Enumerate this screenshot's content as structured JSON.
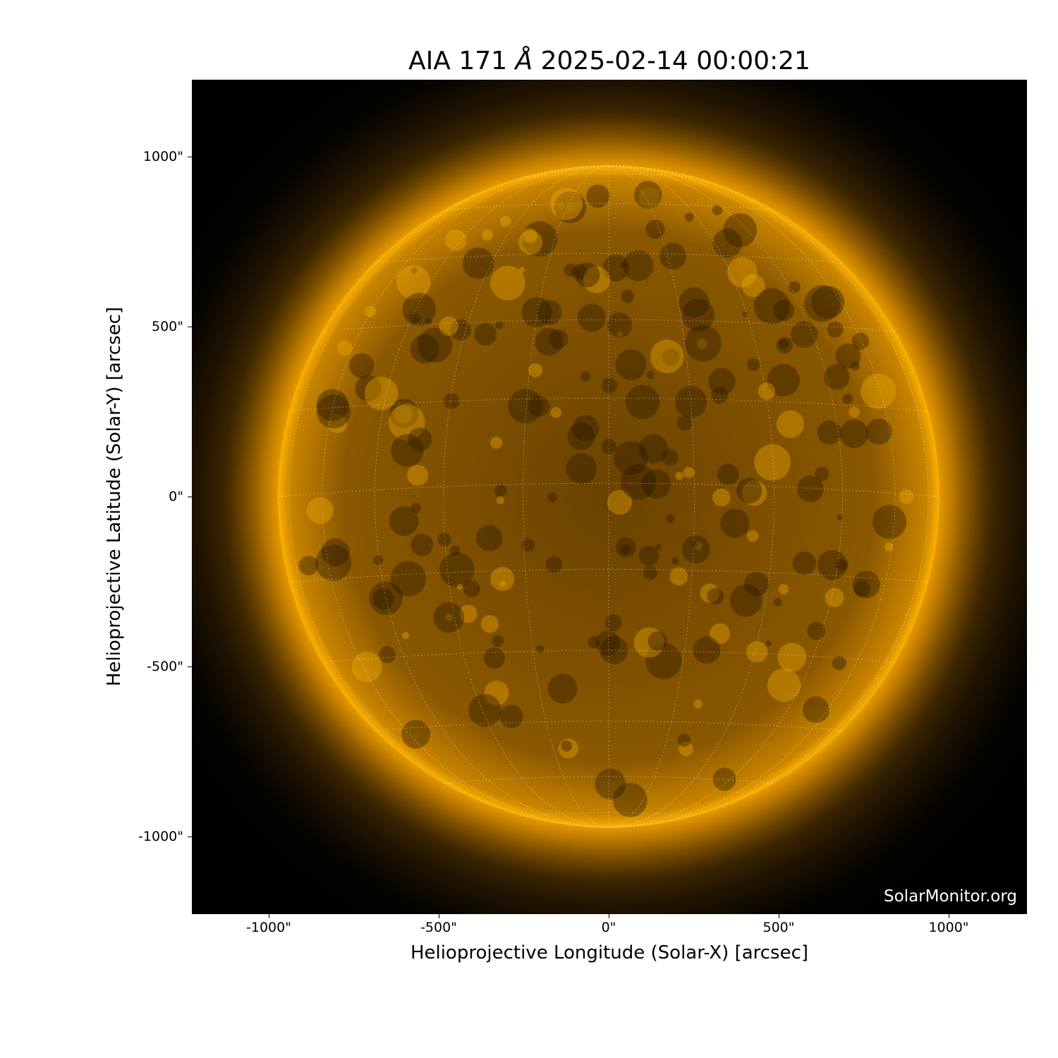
{
  "title": {
    "instrument": "AIA 171",
    "unit": "Å",
    "datetime": "2025-02-14 00:00:21"
  },
  "xaxis": {
    "label": "Helioprojective Longitude (Solar-X) [arcsec]",
    "ticks": [
      "-1000\"",
      "-500\"",
      "0\"",
      "500\"",
      "1000\""
    ],
    "tick_values": [
      -1000,
      -500,
      0,
      500,
      1000
    ]
  },
  "yaxis": {
    "label": "Helioprojective Latitude (Solar-Y) [arcsec]",
    "ticks": [
      "1000\"",
      "500\"",
      "0\"",
      "-500\"",
      "-1000\""
    ],
    "tick_values": [
      1000,
      500,
      0,
      -500,
      -1000
    ]
  },
  "credit": "SolarMonitor.org",
  "colors": {
    "disk": "#b07000",
    "corona": "#ffb300",
    "background": "#000000",
    "grid": "#ffffff"
  },
  "grid_spacing_deg": 15
}
